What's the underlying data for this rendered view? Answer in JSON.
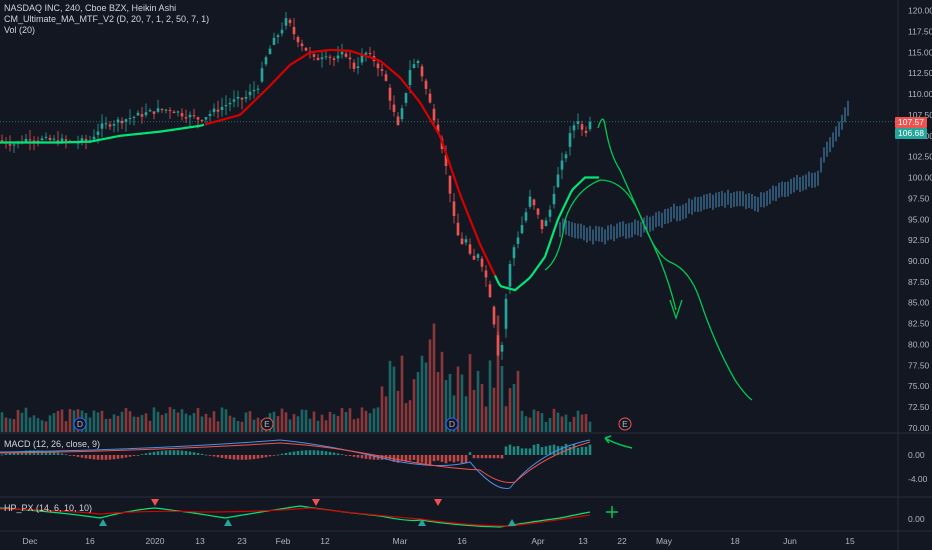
{
  "header": {
    "symbol": "NASDAQ INC, 240, Cboe BZX, Heikin Ashi",
    "ma_study": "CM_Ultimate_MA_MTF_V2 (D, 20, 7, 1, 2, 50, 7, 1)",
    "vol_study": "Vol (20)"
  },
  "panes": {
    "macd_label": "MACD (12, 26, close, 9)",
    "hp_label": "HP_PX (14, 6, 10, 10)"
  },
  "price_tags": {
    "upper": "107.57",
    "lower": "106.68"
  },
  "colors": {
    "up": "#26a69a",
    "down": "#ef5350",
    "background": "#131722",
    "ma": "#00e676",
    "ma_down": "#d50000",
    "projection": "#4a90c2",
    "drawing": "#00c853",
    "event": "#2962ff"
  },
  "chart_data": [
    {
      "type": "candlestick",
      "title": "NASDAQ INC, 240, Cboe BZX, Heikin Ashi",
      "y_ticks": [
        "120.00",
        "117.50",
        "115.00",
        "112.50",
        "110.00",
        "107.50",
        "105.00",
        "102.50",
        "100.00",
        "97.50",
        "95.00",
        "92.50",
        "90.00",
        "87.50",
        "85.00",
        "82.50",
        "80.00",
        "77.50",
        "75.00",
        "72.50",
        "70.00"
      ],
      "ylim": [
        70,
        120
      ],
      "x_ticks": [
        "Dec",
        "16",
        "2020",
        "13",
        "23",
        "Feb",
        "12",
        "Mar",
        "16",
        "Apr",
        "13",
        "22",
        "May",
        "18",
        "Jun",
        "15"
      ],
      "ohlc_keypoints": [
        [
          0,
          104.5
        ],
        [
          15,
          104
        ],
        [
          30,
          104.8
        ],
        [
          45,
          104.5
        ],
        [
          60,
          104.4
        ],
        [
          75,
          104.2
        ],
        [
          90,
          104.5
        ],
        [
          100,
          106
        ],
        [
          110,
          106.5
        ],
        [
          125,
          107
        ],
        [
          140,
          107.5
        ],
        [
          155,
          108
        ],
        [
          170,
          108.2
        ],
        [
          185,
          107.5
        ],
        [
          200,
          107
        ],
        [
          215,
          108
        ],
        [
          230,
          109
        ],
        [
          245,
          109.5
        ],
        [
          258,
          111
        ],
        [
          265,
          114
        ],
        [
          272,
          116
        ],
        [
          280,
          117.5
        ],
        [
          287,
          119
        ],
        [
          295,
          117
        ],
        [
          305,
          115.5
        ],
        [
          315,
          114
        ],
        [
          325,
          115
        ],
        [
          335,
          114
        ],
        [
          345,
          115
        ],
        [
          355,
          113
        ],
        [
          365,
          115
        ],
        [
          375,
          114
        ],
        [
          385,
          112
        ],
        [
          392,
          108.5
        ],
        [
          398,
          106
        ],
        [
          404,
          109
        ],
        [
          410,
          113
        ],
        [
          418,
          114
        ],
        [
          425,
          111
        ],
        [
          432,
          108
        ],
        [
          440,
          105
        ],
        [
          448,
          100
        ],
        [
          454,
          95
        ],
        [
          460,
          92
        ],
        [
          466,
          92.5
        ],
        [
          472,
          89.5
        ],
        [
          478,
          91
        ],
        [
          484,
          89
        ],
        [
          490,
          86
        ],
        [
          496,
          81
        ],
        [
          500,
          77
        ],
        [
          504,
          83
        ],
        [
          508,
          88
        ],
        [
          512,
          91
        ],
        [
          518,
          93
        ],
        [
          524,
          95
        ],
        [
          530,
          97.5
        ],
        [
          536,
          96
        ],
        [
          542,
          94
        ],
        [
          548,
          95
        ],
        [
          555,
          99
        ],
        [
          560,
          101
        ],
        [
          566,
          103
        ],
        [
          572,
          106
        ],
        [
          578,
          107
        ],
        [
          584,
          105
        ],
        [
          590,
          107
        ]
      ],
      "ma_keypoints": [
        [
          0,
          104.2
        ],
        [
          60,
          104.2
        ],
        [
          90,
          104.3
        ],
        [
          120,
          105
        ],
        [
          160,
          105.5
        ],
        [
          200,
          106.2
        ],
        [
          240,
          107.5
        ],
        [
          270,
          111
        ],
        [
          290,
          113.5
        ],
        [
          310,
          115
        ],
        [
          330,
          115.3
        ],
        [
          350,
          115.2
        ],
        [
          380,
          114
        ],
        [
          400,
          112
        ],
        [
          420,
          109
        ],
        [
          440,
          105
        ],
        [
          460,
          98
        ],
        [
          480,
          92
        ],
        [
          500,
          87
        ],
        [
          515,
          86.5
        ],
        [
          530,
          88
        ],
        [
          545,
          90.5
        ],
        [
          558,
          95
        ],
        [
          572,
          98.5
        ],
        [
          585,
          100
        ],
        [
          600,
          100
        ]
      ],
      "ma_color_switch": [
        [
          0,
          205,
          "#00e676"
        ],
        [
          205,
          385,
          "#d50000"
        ],
        [
          385,
          495,
          "#d50000"
        ],
        [
          495,
          600,
          "#00e676"
        ]
      ],
      "projection_keypoints": [
        [
          560,
          94
        ],
        [
          600,
          93
        ],
        [
          640,
          94
        ],
        [
          680,
          96
        ],
        [
          720,
          97.5
        ],
        [
          760,
          97
        ],
        [
          790,
          99
        ],
        [
          805,
          99.5
        ],
        [
          818,
          100
        ],
        [
          825,
          103
        ],
        [
          835,
          105
        ],
        [
          848,
          108
        ]
      ],
      "event_markers": [
        {
          "label": "D",
          "color": "#2962ff"
        },
        {
          "label": "E",
          "color": "#ef5350"
        },
        {
          "label": "D",
          "color": "#2962ff"
        },
        {
          "label": "E",
          "color": "#ef5350"
        }
      ]
    },
    {
      "type": "bar",
      "title": "MACD (12, 26, close, 9)",
      "y_ticks": [
        "0.00",
        "-4.00"
      ],
      "ylim": [
        -6,
        2
      ]
    },
    {
      "type": "line",
      "title": "HP_PX (14, 6, 10, 10)",
      "y_ticks": [
        "0.00"
      ]
    }
  ]
}
